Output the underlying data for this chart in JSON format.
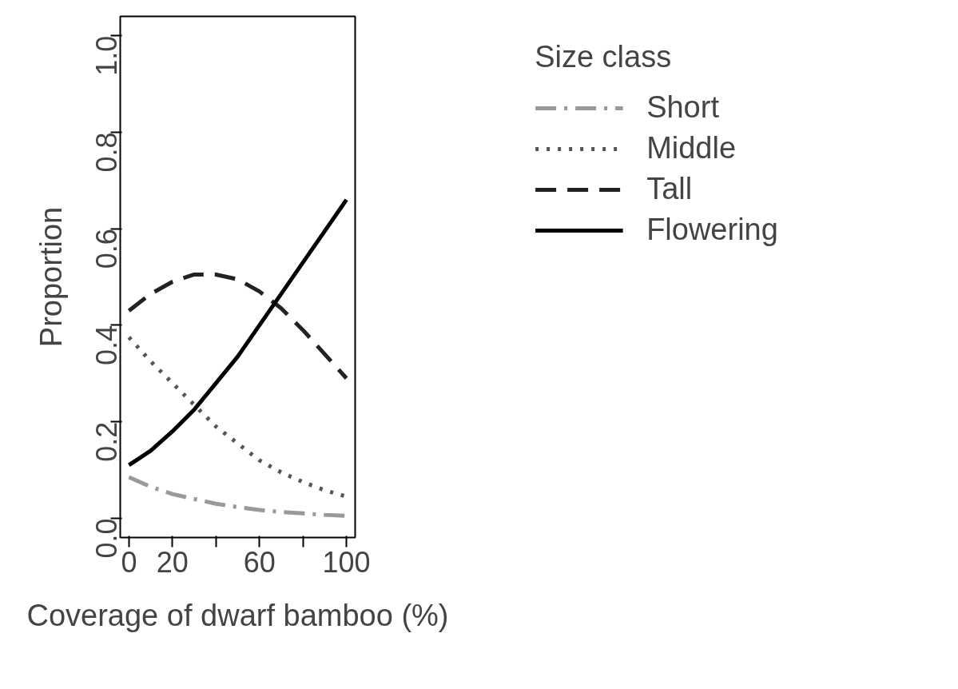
{
  "chart_data": {
    "type": "line",
    "xlabel": "Coverage of dwarf bamboo (%)",
    "ylabel": "Proportion",
    "legend_title": "Size class",
    "x": [
      0,
      10,
      20,
      30,
      40,
      50,
      60,
      70,
      80,
      90,
      100
    ],
    "series": [
      {
        "name": "Short",
        "color": "#999999",
        "line_style": "dashdot",
        "values": [
          0.085,
          0.065,
          0.05,
          0.04,
          0.03,
          0.023,
          0.017,
          0.013,
          0.01,
          0.007,
          0.005
        ]
      },
      {
        "name": "Middle",
        "color": "#555555",
        "line_style": "dotted",
        "values": [
          0.375,
          0.325,
          0.28,
          0.235,
          0.19,
          0.155,
          0.12,
          0.095,
          0.075,
          0.058,
          0.045
        ]
      },
      {
        "name": "Tall",
        "color": "#222222",
        "line_style": "dashed",
        "values": [
          0.43,
          0.465,
          0.49,
          0.505,
          0.505,
          0.495,
          0.47,
          0.435,
          0.39,
          0.34,
          0.29
        ]
      },
      {
        "name": "Flowering",
        "color": "#000000",
        "line_style": "solid",
        "values": [
          0.11,
          0.14,
          0.18,
          0.225,
          0.28,
          0.335,
          0.4,
          0.465,
          0.53,
          0.595,
          0.66
        ]
      }
    ],
    "xlim": [
      -4,
      104
    ],
    "ylim": [
      -0.04,
      1.04
    ],
    "xticks": [
      0,
      20,
      {
        "value": 40,
        "label": null
      },
      60,
      {
        "value": 80,
        "label": null
      },
      100
    ],
    "yticks": [
      {
        "value": 0,
        "label": "0.0"
      },
      0.2,
      0.4,
      0.6,
      0.8,
      {
        "value": 1,
        "label": "1.0"
      }
    ],
    "grid": false,
    "legend": "right",
    "marker": "none"
  }
}
